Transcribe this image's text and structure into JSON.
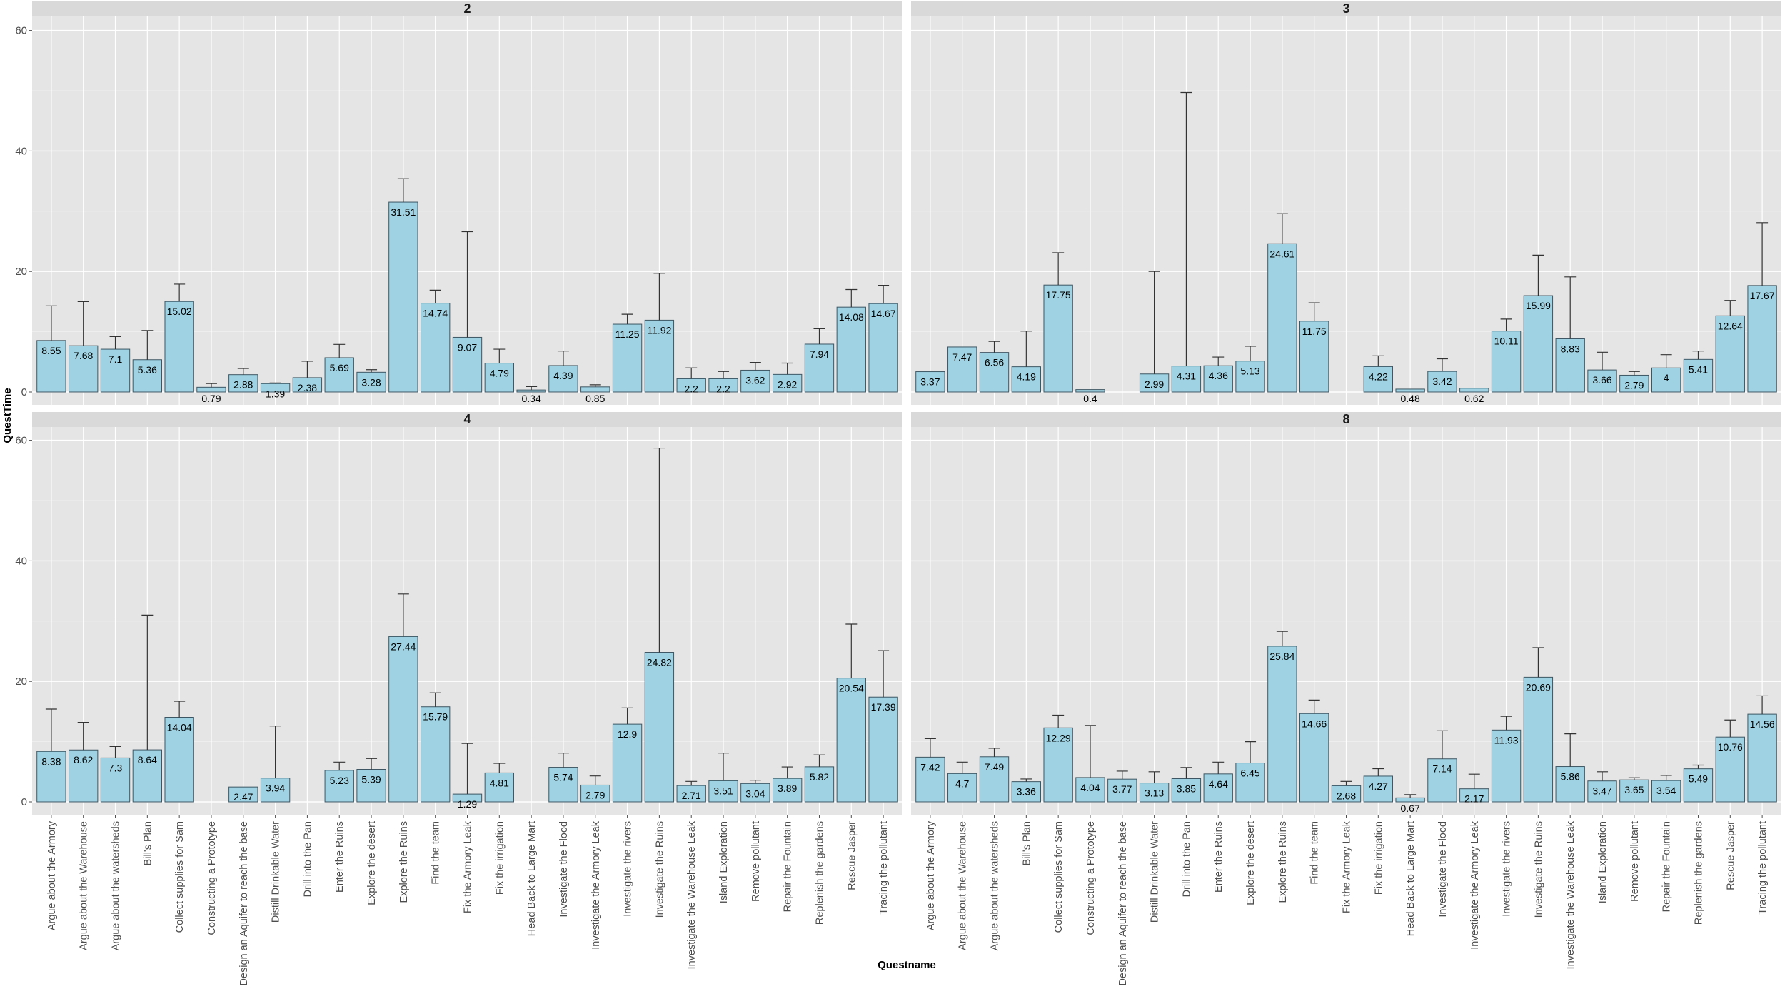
{
  "colors": {
    "panel_background": "#e5e5e5",
    "grid_major": "#ffffff",
    "strip_background": "#d9d9d9",
    "bar_fill": "#9fd3e3",
    "bar_outline": "#3d5663",
    "error_bar": "#333333",
    "tick": "#4d4d4d"
  },
  "chart_data": {
    "type": "bar",
    "xlabel": "Questname",
    "ylabel": "QuestTime",
    "ylim": [
      0,
      60
    ],
    "yticks": [
      0,
      20,
      40,
      60
    ],
    "error_bars": true,
    "facet_layout": "2x2",
    "categories": [
      "Argue about the Armory",
      "Argue about the Warehouse",
      "Argue about the watersheds",
      "Bill's Plan",
      "Collect supplies for Sam",
      "Constructing a Prototype",
      "Design an Aquifer to reach the base",
      "Distill Drinkable Water",
      "Drill into the Pan",
      "Enter the Ruins",
      "Explore the desert",
      "Explore the Ruins",
      "Find the team",
      "Fix the Armory Leak",
      "Fix the irrigation",
      "Head Back to Large Mart",
      "Investigate the  Flood",
      "Investigate the Armory Leak",
      "Investigate the rivers",
      "Investigate the Ruins",
      "Investigate the Warehouse Leak",
      "Island Exploration",
      "Remove pollutant",
      "Repair the Fountain",
      "Replenish the gardens",
      "Rescue Jasper",
      "Tracing the pollutant"
    ],
    "panels": [
      {
        "title": "2",
        "values": [
          8.55,
          7.68,
          7.1,
          5.36,
          15.02,
          0.79,
          2.88,
          1.39,
          2.38,
          5.69,
          3.28,
          31.51,
          14.74,
          9.07,
          4.79,
          0.34,
          4.39,
          0.85,
          11.25,
          11.92,
          2.2,
          2.2,
          3.62,
          2.92,
          7.94,
          14.08,
          14.67
        ],
        "value_labels": [
          "8.55",
          "7.68",
          "7.1",
          "5.36",
          "15.02",
          "0.79",
          "2.88",
          "1.39",
          "2.38",
          "5.69",
          "3.28",
          "31.51",
          "14.74",
          "9.07",
          "4.79",
          "0.34",
          "4.39",
          "0.85",
          "11.25",
          "11.92",
          "2.2",
          "2.2",
          "3.62",
          "2.92",
          "7.94",
          "14.08",
          "14.67"
        ],
        "error_upper": [
          14.3,
          15.0,
          9.2,
          10.2,
          17.9,
          1.4,
          3.9,
          1.5,
          5.1,
          7.9,
          3.7,
          35.4,
          16.9,
          26.6,
          7.1,
          0.9,
          6.8,
          1.2,
          12.9,
          19.7,
          4.0,
          3.4,
          4.9,
          4.8,
          10.5,
          17.0,
          17.7
        ]
      },
      {
        "title": "3",
        "values": [
          3.37,
          7.47,
          6.56,
          4.19,
          17.75,
          0.4,
          null,
          2.99,
          4.31,
          4.36,
          5.13,
          24.61,
          11.75,
          null,
          4.22,
          0.48,
          3.42,
          0.62,
          10.11,
          15.99,
          8.83,
          3.66,
          2.79,
          4.0,
          5.41,
          12.64,
          17.67
        ],
        "value_labels": [
          "3.37",
          "7.47",
          "6.56",
          "4.19",
          "17.75",
          "0.4",
          "",
          "2.99",
          "4.31",
          "4.36",
          "5.13",
          "24.61",
          "11.75",
          "",
          "4.22",
          "0.48",
          "3.42",
          "0.62",
          "10.11",
          "15.99",
          "8.83",
          "3.66",
          "2.79",
          "4",
          "5.41",
          "12.64",
          "17.67"
        ],
        "error_upper": [
          null,
          null,
          8.4,
          10.1,
          23.1,
          null,
          null,
          20.0,
          49.7,
          5.8,
          7.6,
          29.6,
          14.8,
          null,
          6.0,
          null,
          5.5,
          null,
          12.1,
          22.7,
          19.1,
          6.6,
          3.4,
          6.2,
          6.8,
          15.2,
          28.1
        ]
      },
      {
        "title": "4",
        "values": [
          8.38,
          8.62,
          7.3,
          8.64,
          14.04,
          null,
          2.47,
          3.94,
          null,
          5.23,
          5.39,
          27.44,
          15.79,
          1.29,
          4.81,
          null,
          5.74,
          2.79,
          12.9,
          24.82,
          2.71,
          3.51,
          3.04,
          3.89,
          5.82,
          20.54,
          17.39
        ],
        "value_labels": [
          "8.38",
          "8.62",
          "7.3",
          "8.64",
          "14.04",
          "",
          "2.47",
          "3.94",
          "",
          "5.23",
          "5.39",
          "27.44",
          "15.79",
          "1.29",
          "4.81",
          "",
          "5.74",
          "2.79",
          "12.9",
          "24.82",
          "2.71",
          "3.51",
          "3.04",
          "3.89",
          "5.82",
          "20.54",
          "17.39"
        ],
        "error_upper": [
          15.4,
          13.2,
          9.2,
          31.0,
          16.7,
          null,
          null,
          12.6,
          null,
          6.6,
          7.2,
          34.5,
          18.1,
          9.7,
          6.4,
          null,
          8.1,
          4.3,
          15.6,
          58.7,
          3.4,
          8.1,
          3.6,
          5.8,
          7.8,
          29.5,
          25.1
        ]
      },
      {
        "title": "8",
        "values": [
          7.42,
          4.7,
          7.49,
          3.36,
          12.29,
          4.04,
          3.77,
          3.13,
          3.85,
          4.64,
          6.45,
          25.84,
          14.66,
          2.68,
          4.27,
          0.67,
          7.14,
          2.17,
          11.93,
          20.69,
          5.86,
          3.47,
          3.65,
          3.54,
          5.49,
          10.76,
          14.56
        ],
        "value_labels": [
          "7.42",
          "4.7",
          "7.49",
          "3.36",
          "12.29",
          "4.04",
          "3.77",
          "3.13",
          "3.85",
          "4.64",
          "6.45",
          "25.84",
          "14.66",
          "2.68",
          "4.27",
          "0.67",
          "7.14",
          "2.17",
          "11.93",
          "20.69",
          "5.86",
          "3.47",
          "3.65",
          "3.54",
          "5.49",
          "10.76",
          "14.56"
        ],
        "error_upper": [
          10.5,
          6.6,
          8.9,
          3.8,
          14.4,
          12.7,
          5.1,
          5.0,
          5.7,
          6.6,
          10.0,
          28.3,
          16.9,
          3.4,
          5.5,
          1.2,
          11.8,
          4.6,
          14.2,
          25.6,
          11.3,
          5.0,
          4.0,
          4.4,
          6.1,
          13.6,
          17.6
        ]
      }
    ]
  }
}
